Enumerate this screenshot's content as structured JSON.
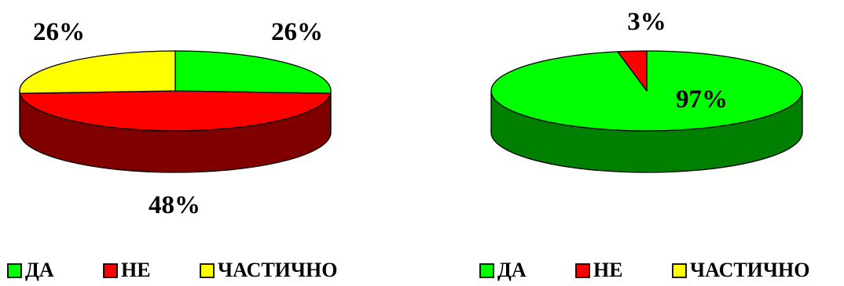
{
  "colors": {
    "yes_top": "#00ff00",
    "yes_side": "#008000",
    "no_top": "#ff0000",
    "no_side": "#800000",
    "partial_top": "#ffff00",
    "partial_side": "#808000",
    "outline": "#000000"
  },
  "chart_data": [
    {
      "type": "pie",
      "categories": [
        "ДА",
        "НЕ",
        "ЧАСТИЧНО"
      ],
      "values": [
        26,
        48,
        26
      ],
      "data_labels": [
        "26%",
        "48%",
        "26%"
      ],
      "legend": {
        "placement": "bottom",
        "entries": [
          "ДА",
          "НЕ",
          "ЧАСТИЧНО"
        ]
      }
    },
    {
      "type": "pie",
      "categories": [
        "ДА",
        "НЕ",
        "ЧАСТИЧНО"
      ],
      "values": [
        97,
        3,
        0
      ],
      "data_labels": [
        "97%",
        "3%",
        ""
      ],
      "legend": {
        "placement": "bottom",
        "entries": [
          "ДА",
          "НЕ",
          "ЧАСТИЧНО"
        ]
      }
    }
  ]
}
